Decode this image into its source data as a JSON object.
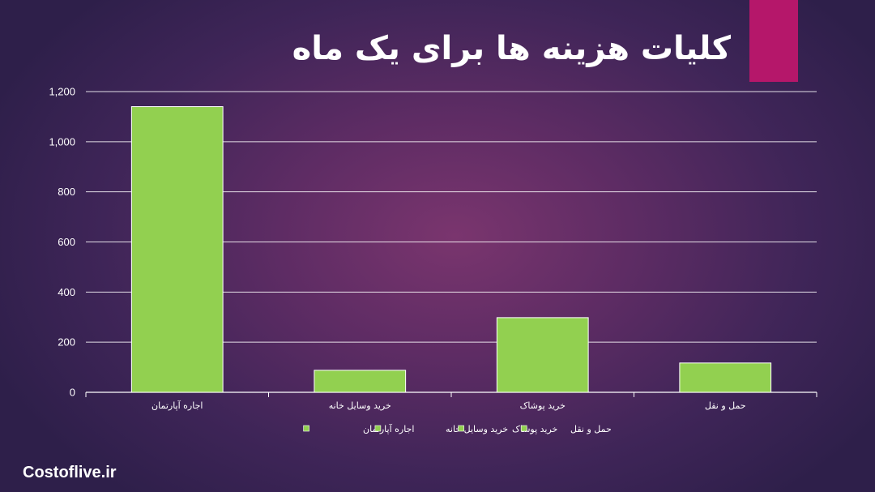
{
  "title": "کلیات هزینه ها برای یک ماه",
  "watermark": "Costoflive.ir",
  "colors": {
    "accent": "#b5176a",
    "bar": "#92d050",
    "grid": "#ffffff",
    "text": "#ffffff"
  },
  "chart_data": {
    "type": "bar",
    "categories": [
      "اجاره آپارتمان",
      "خرید وسایل خانه",
      "خرید پوشاک",
      "حمل و نقل"
    ],
    "values": [
      1140,
      88,
      298,
      117
    ],
    "ylim": [
      0,
      1200
    ],
    "y_ticks": [
      "0",
      "200",
      "400",
      "600",
      "800",
      "1,000",
      "1,200"
    ],
    "y_tick_values": [
      0,
      200,
      400,
      600,
      800,
      1000,
      1200
    ],
    "xlabel": "",
    "ylabel": "",
    "grid": true,
    "legend_position": "bottom",
    "legend_entries": [
      "اجاره آپارتمان",
      "خرید وسایل خانه",
      "خرید پوشاک",
      "حمل و نقل"
    ]
  }
}
